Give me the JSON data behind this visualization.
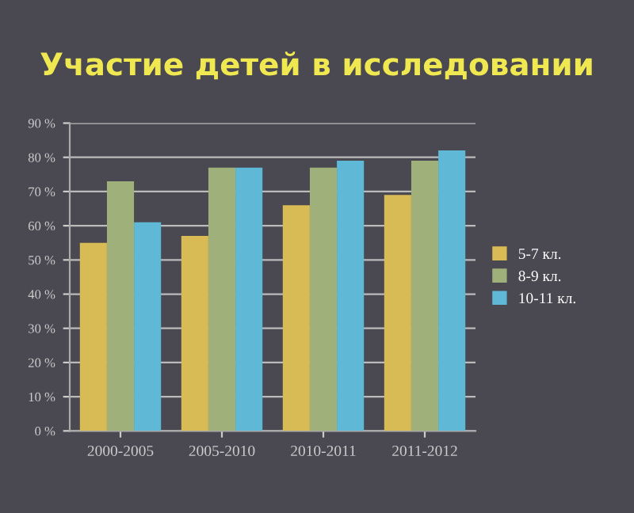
{
  "chart_data": {
    "type": "bar",
    "title": "Участие детей в исследовании",
    "categories": [
      "2000-2005",
      "2005-2010",
      "2010-2011",
      "2011-2012"
    ],
    "series": [
      {
        "name": "5-7 кл.",
        "color": "#d9bb55",
        "values": [
          55,
          57,
          66,
          69
        ]
      },
      {
        "name": "8-9 кл.",
        "color": "#9fb07a",
        "values": [
          73,
          77,
          77,
          79
        ]
      },
      {
        "name": "10-11 кл.",
        "color": "#5fb8d6",
        "values": [
          61,
          77,
          79,
          82
        ]
      }
    ],
    "ylim": [
      0,
      90
    ],
    "yticks": [
      {
        "value": 0,
        "label": "0 %"
      },
      {
        "value": 10,
        "label": "10 %"
      },
      {
        "value": 20,
        "label": "20 %"
      },
      {
        "value": 30,
        "label": "30 %"
      },
      {
        "value": 40,
        "label": "40 %"
      },
      {
        "value": 50,
        "label": "50 %"
      },
      {
        "value": 60,
        "label": "60 %"
      },
      {
        "value": 70,
        "label": "70 %"
      },
      {
        "value": 80,
        "label": "80 %"
      },
      {
        "value": 90,
        "label": "90 %"
      }
    ],
    "grid": "y",
    "legend": "right"
  }
}
